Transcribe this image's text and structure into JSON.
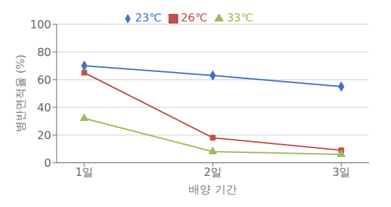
{
  "chart_data": {
    "type": "line",
    "xlabel": "배양 기간",
    "ylabel": "병반면적율 (%)",
    "categories": [
      "1일",
      "2일",
      "3일"
    ],
    "series": [
      {
        "name": "23℃",
        "color": "#4472C4",
        "marker": "diamond",
        "values": [
          70,
          63,
          55
        ]
      },
      {
        "name": "26℃",
        "color": "#C0504D",
        "marker": "square",
        "values": [
          65,
          18,
          9
        ]
      },
      {
        "name": "33℃",
        "color": "#9BBB59",
        "marker": "triangle",
        "values": [
          32,
          8,
          6
        ]
      }
    ],
    "ylim": [
      0,
      100
    ],
    "yticks": [
      0,
      20,
      40,
      60,
      80,
      100
    ],
    "grid": true,
    "legend": "top"
  }
}
